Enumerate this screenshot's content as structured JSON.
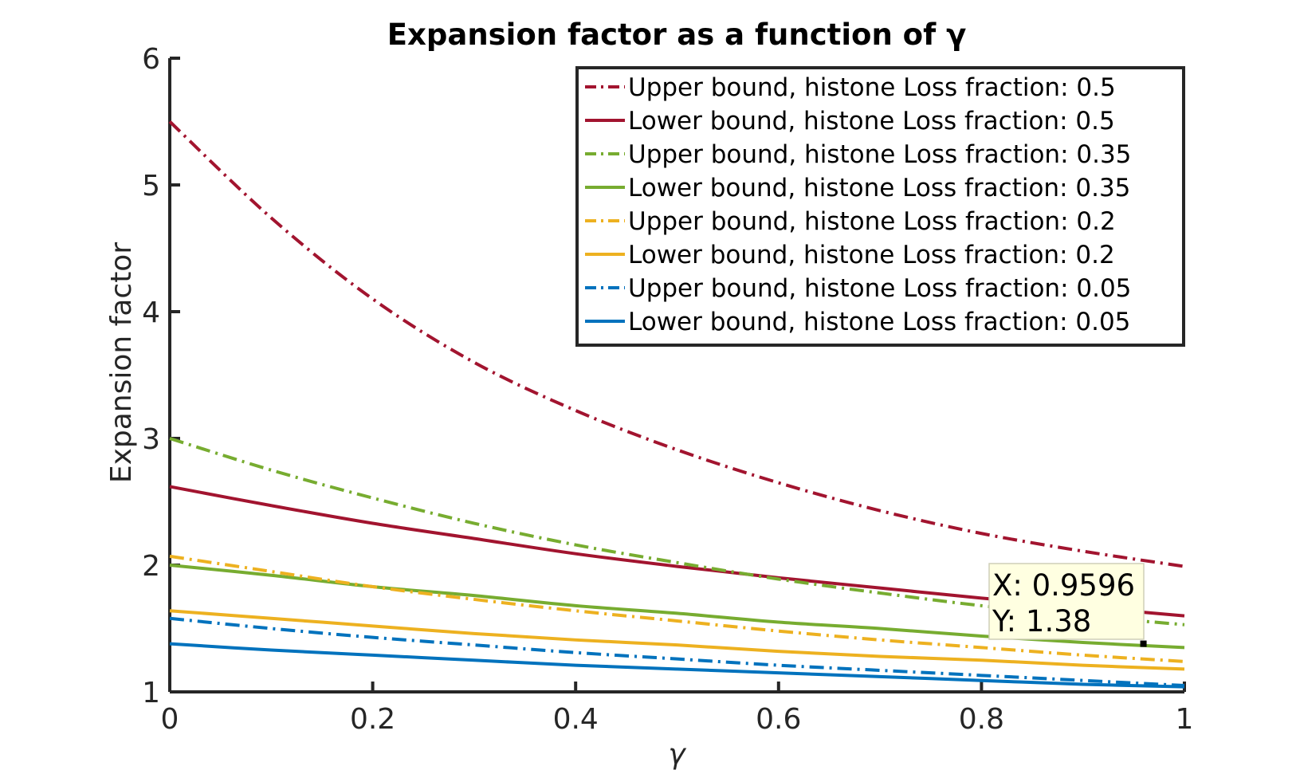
{
  "chart_data": {
    "type": "line",
    "title": "Expansion factor as a function of γ",
    "xlabel": "γ",
    "ylabel": "Expansion factor",
    "xlim": [
      0,
      1
    ],
    "ylim": [
      1,
      6
    ],
    "x_ticks": [
      0,
      0.2,
      0.4,
      0.6,
      0.8,
      1
    ],
    "x_tick_labels": [
      "0",
      "0.2",
      "0.4",
      "0.6",
      "0.8",
      "1"
    ],
    "y_ticks": [
      1,
      2,
      3,
      4,
      5,
      6
    ],
    "y_tick_labels": [
      "1",
      "2",
      "3",
      "4",
      "5",
      "6"
    ],
    "grid": false,
    "legend_position": "top-right",
    "x": [
      0,
      0.1,
      0.2,
      0.3,
      0.4,
      0.5,
      0.6,
      0.7,
      0.8,
      0.9,
      1
    ],
    "series": [
      {
        "name": "Upper bound, histone Loss fraction: 0.5",
        "color": "#A2142F",
        "dash": "dash-dot",
        "values": [
          5.5,
          4.74,
          4.1,
          3.6,
          3.22,
          2.91,
          2.65,
          2.43,
          2.25,
          2.11,
          1.99
        ]
      },
      {
        "name": "Lower bound, histone Loss fraction: 0.5",
        "color": "#A2142F",
        "dash": "solid",
        "values": [
          2.62,
          2.47,
          2.33,
          2.21,
          2.09,
          1.99,
          1.9,
          1.82,
          1.74,
          1.67,
          1.6
        ]
      },
      {
        "name": "Upper bound, histone Loss fraction: 0.35",
        "color": "#77AC30",
        "dash": "dash-dot",
        "values": [
          3.0,
          2.75,
          2.53,
          2.33,
          2.16,
          2.02,
          1.89,
          1.78,
          1.68,
          1.6,
          1.53
        ]
      },
      {
        "name": "Lower bound, histone Loss fraction: 0.35",
        "color": "#77AC30",
        "dash": "solid",
        "values": [
          2.0,
          1.92,
          1.83,
          1.76,
          1.68,
          1.62,
          1.55,
          1.5,
          1.44,
          1.39,
          1.35
        ]
      },
      {
        "name": "Upper bound, histone Loss fraction: 0.2",
        "color": "#EDB120",
        "dash": "dash-dot",
        "values": [
          2.07,
          1.95,
          1.83,
          1.73,
          1.64,
          1.56,
          1.48,
          1.41,
          1.35,
          1.29,
          1.24
        ]
      },
      {
        "name": "Lower bound, histone Loss fraction: 0.2",
        "color": "#EDB120",
        "dash": "solid",
        "values": [
          1.64,
          1.58,
          1.52,
          1.46,
          1.41,
          1.37,
          1.32,
          1.28,
          1.25,
          1.21,
          1.18
        ]
      },
      {
        "name": "Upper bound, histone Loss fraction: 0.05",
        "color": "#0072BD",
        "dash": "dash-dot",
        "values": [
          1.58,
          1.5,
          1.43,
          1.37,
          1.31,
          1.26,
          1.21,
          1.17,
          1.13,
          1.09,
          1.05
        ]
      },
      {
        "name": "Lower bound, histone Loss fraction: 0.05",
        "color": "#0072BD",
        "dash": "solid",
        "values": [
          1.38,
          1.33,
          1.29,
          1.25,
          1.21,
          1.18,
          1.15,
          1.12,
          1.09,
          1.06,
          1.04
        ]
      }
    ],
    "datatip": {
      "x_text": "X: 0.9596",
      "y_text": "Y: 1.38",
      "x": 0.9596,
      "y": 1.38
    }
  }
}
